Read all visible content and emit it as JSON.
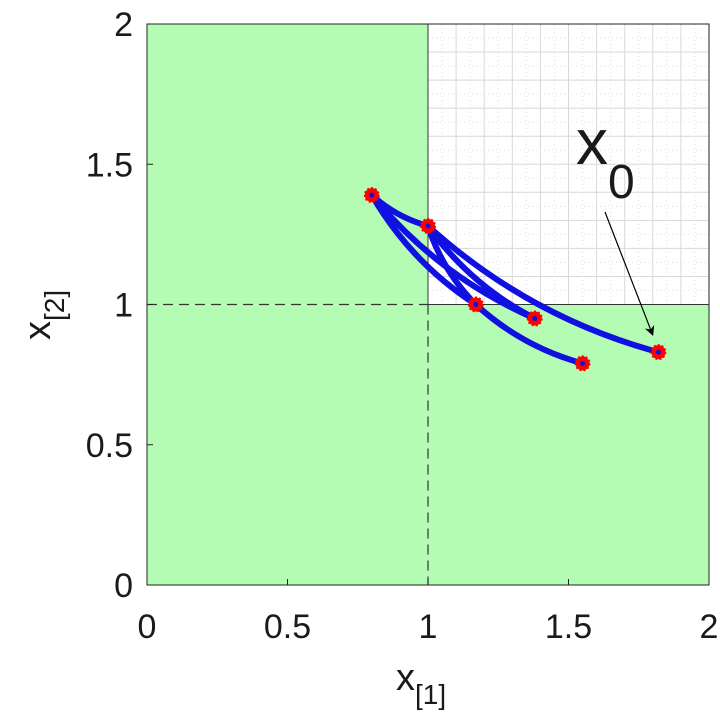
{
  "chart_data": {
    "type": "line",
    "xlabel": "x",
    "xlabel_subscript": "[1]",
    "ylabel": "x",
    "ylabel_subscript": "[2]",
    "xlim": [
      0,
      2
    ],
    "ylim": [
      0,
      2
    ],
    "x_ticks": [
      "0",
      "0.5",
      "1",
      "1.5",
      "2"
    ],
    "y_ticks": [
      "0",
      "0.5",
      "1",
      "1.5",
      "2"
    ],
    "grid": "minor grid in upper-right quadrant only",
    "shaded_region": {
      "description": "green region outside the quadrant x1 > 1, x2 > 1",
      "color": "#b4fcb4",
      "boundary_x": 1,
      "boundary_y": 1
    },
    "reference_lines": [
      {
        "orientation": "vertical",
        "x": 1,
        "style": "dashed"
      },
      {
        "orientation": "horizontal",
        "y": 1,
        "style": "dashed"
      }
    ],
    "series_color": "#1010e0",
    "marker_color": "#ff0000",
    "series": [
      {
        "points": [
          [
            1.82,
            0.83
          ],
          [
            1.0,
            1.28
          ],
          [
            0.8,
            1.39
          ]
        ]
      },
      {
        "points": [
          [
            1.38,
            0.95
          ],
          [
            1.0,
            1.28
          ]
        ]
      },
      {
        "points": [
          [
            1.38,
            0.95
          ],
          [
            0.8,
            1.39
          ]
        ]
      },
      {
        "points": [
          [
            1.55,
            0.79
          ],
          [
            1.17,
            1.0
          ],
          [
            0.8,
            1.39
          ]
        ]
      },
      {
        "points": [
          [
            1.17,
            1.0
          ],
          [
            1.0,
            1.28
          ]
        ]
      }
    ],
    "markers": [
      [
        1.82,
        0.83
      ],
      [
        1.55,
        0.79
      ],
      [
        1.38,
        0.95
      ],
      [
        1.17,
        1.0
      ],
      [
        1.0,
        1.28
      ],
      [
        0.8,
        1.39
      ]
    ],
    "annotations": [
      {
        "text": "x",
        "subscript": "0",
        "points_to": [
          1.82,
          0.83
        ]
      }
    ]
  }
}
